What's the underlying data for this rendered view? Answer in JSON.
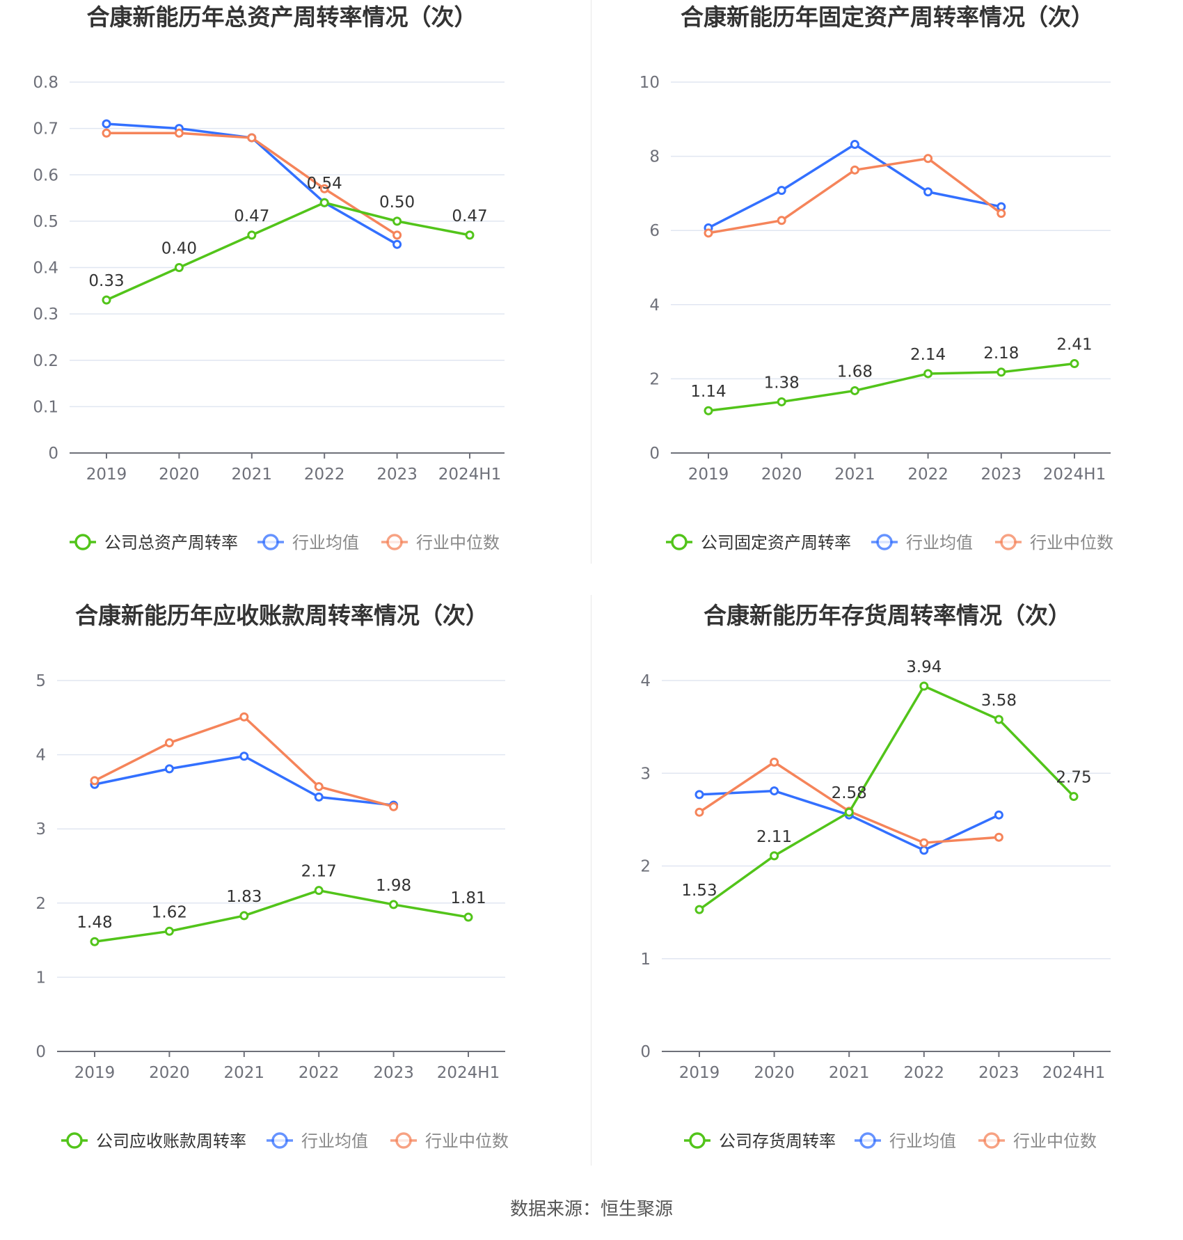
{
  "colors": {
    "company": "#52c41a",
    "avg": "#3370ff",
    "median": "#f5845a",
    "grid": "#e0e6f1",
    "axis": "#6e7079"
  },
  "source_text": "数据来源：恒生聚源",
  "charts": [
    {
      "title": "合康新能历年总资产周转率情况（次）",
      "legend": [
        "公司总资产周转率",
        "行业均值",
        "行业中位数"
      ],
      "chart_data": {
        "type": "line",
        "categories": [
          "2019",
          "2020",
          "2021",
          "2022",
          "2023",
          "2024H1"
        ],
        "ylim": [
          0,
          0.8
        ],
        "yticks": [
          "0",
          "0.1",
          "0.2",
          "0.3",
          "0.4",
          "0.5",
          "0.6",
          "0.7",
          "0.8"
        ],
        "series": [
          {
            "name": "公司总资产周转率",
            "values": [
              0.33,
              0.4,
              0.47,
              0.54,
              0.5,
              0.47
            ],
            "labels": [
              "0.33",
              "0.40",
              "0.47",
              "0.54",
              "0.50",
              "0.47"
            ]
          },
          {
            "name": "行业均值",
            "values": [
              0.71,
              0.7,
              0.68,
              0.54,
              0.45,
              null
            ]
          },
          {
            "name": "行业中位数",
            "values": [
              0.69,
              0.69,
              0.68,
              0.57,
              0.47,
              null
            ]
          }
        ]
      }
    },
    {
      "title": "合康新能历年固定资产周转率情况（次）",
      "legend": [
        "公司固定资产周转率",
        "行业均值",
        "行业中位数"
      ],
      "chart_data": {
        "type": "line",
        "categories": [
          "2019",
          "2020",
          "2021",
          "2022",
          "2023",
          "2024H1"
        ],
        "ylim": [
          0,
          10
        ],
        "yticks": [
          "0",
          "2",
          "4",
          "6",
          "8",
          "10"
        ],
        "series": [
          {
            "name": "公司固定资产周转率",
            "values": [
              1.14,
              1.38,
              1.68,
              2.14,
              2.18,
              2.41
            ],
            "labels": [
              "1.14",
              "1.38",
              "1.68",
              "2.14",
              "2.18",
              "2.41"
            ]
          },
          {
            "name": "行业均值",
            "values": [
              6.07,
              7.08,
              8.32,
              7.04,
              6.64,
              null
            ]
          },
          {
            "name": "行业中位数",
            "values": [
              5.93,
              6.27,
              7.63,
              7.94,
              6.46,
              null
            ]
          }
        ]
      }
    },
    {
      "title": "合康新能历年应收账款周转率情况（次）",
      "legend": [
        "公司应收账款周转率",
        "行业均值",
        "行业中位数"
      ],
      "chart_data": {
        "type": "line",
        "categories": [
          "2019",
          "2020",
          "2021",
          "2022",
          "2023",
          "2024H1"
        ],
        "ylim": [
          0,
          5
        ],
        "yticks": [
          "0",
          "1",
          "2",
          "3",
          "4",
          "5"
        ],
        "series": [
          {
            "name": "公司应收账款周转率",
            "values": [
              1.48,
              1.62,
              1.83,
              2.17,
              1.98,
              1.81
            ],
            "labels": [
              "1.48",
              "1.62",
              "1.83",
              "2.17",
              "1.98",
              "1.81"
            ]
          },
          {
            "name": "行业均值",
            "values": [
              3.6,
              3.81,
              3.98,
              3.43,
              3.32,
              null
            ]
          },
          {
            "name": "行业中位数",
            "values": [
              3.65,
              4.16,
              4.51,
              3.57,
              3.3,
              null
            ]
          }
        ]
      }
    },
    {
      "title": "合康新能历年存货周转率情况（次）",
      "legend": [
        "公司存货周转率",
        "行业均值",
        "行业中位数"
      ],
      "chart_data": {
        "type": "line",
        "categories": [
          "2019",
          "2020",
          "2021",
          "2022",
          "2023",
          "2024H1"
        ],
        "ylim": [
          0,
          4
        ],
        "yticks": [
          "0",
          "1",
          "2",
          "3",
          "4"
        ],
        "series": [
          {
            "name": "公司存货周转率",
            "values": [
              1.53,
              2.11,
              2.58,
              3.94,
              3.58,
              2.75
            ],
            "labels": [
              "1.53",
              "2.11",
              "2.58",
              "3.94",
              "3.58",
              "2.75"
            ]
          },
          {
            "name": "行业均值",
            "values": [
              2.77,
              2.81,
              2.55,
              2.17,
              2.55,
              null
            ]
          },
          {
            "name": "行业中位数",
            "values": [
              2.58,
              3.12,
              2.59,
              2.25,
              2.31,
              null
            ]
          }
        ]
      }
    }
  ]
}
